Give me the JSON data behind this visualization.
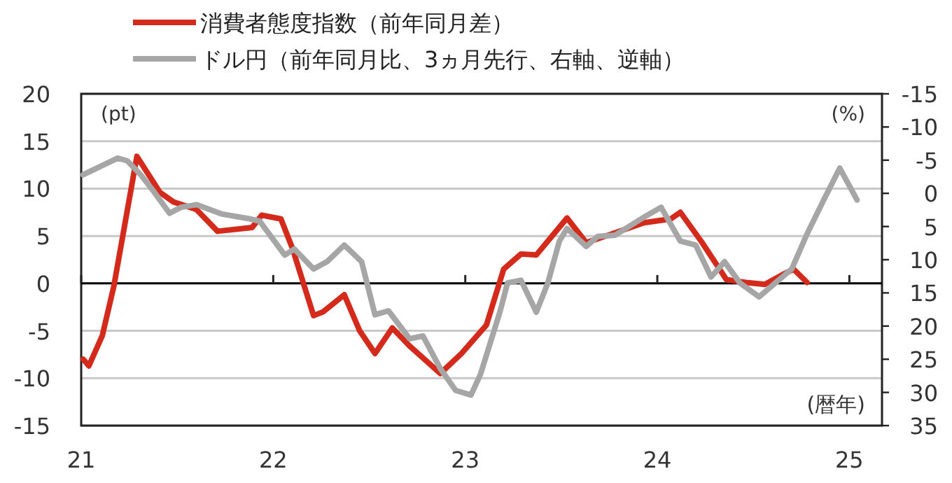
{
  "chart_data": {
    "type": "line",
    "xlim": [
      21,
      25.17
    ],
    "xticks": [
      21,
      22,
      23,
      24,
      25
    ],
    "ylim": [
      -15,
      20
    ],
    "yticks": [
      -15,
      -10,
      -5,
      0,
      5,
      10,
      15,
      20
    ],
    "y2lim": [
      35,
      -15
    ],
    "y2ticks": [
      35,
      30,
      25,
      20,
      15,
      10,
      5,
      0,
      -5,
      -10,
      -15
    ],
    "ylabel": "(pt)",
    "y2label": "(%)",
    "xlabel": "(暦年)",
    "grid": "y",
    "legend": "top",
    "ref_lines": [
      {
        "axis": "y",
        "value": 0,
        "color": "#000000"
      }
    ],
    "series": [
      {
        "name": "消費者態度指数（前年同月差）",
        "color": "#d42a1c",
        "x": [
          21.01,
          21.04,
          21.11,
          21.17,
          21.29,
          21.41,
          21.48,
          21.6,
          21.71,
          21.89,
          21.94,
          22.04,
          22.1,
          22.21,
          22.26,
          22.37,
          22.45,
          22.53,
          22.62,
          22.71,
          22.87,
          22.98,
          23.11,
          23.2,
          23.29,
          23.37,
          23.53,
          23.63,
          23.76,
          23.93,
          24.07,
          24.12,
          24.23,
          24.36,
          24.46,
          24.56,
          24.65,
          24.71,
          24.78
        ],
        "values": [
          -8.0,
          -8.7,
          -5.5,
          -0.3,
          13.4,
          9.6,
          8.6,
          7.8,
          5.5,
          5.9,
          7.2,
          6.8,
          3.7,
          -3.4,
          -3.0,
          -1.2,
          -5.0,
          -7.4,
          -4.7,
          -6.6,
          -9.5,
          -7.4,
          -4.4,
          1.5,
          3.1,
          3.0,
          6.9,
          4.3,
          5.2,
          6.4,
          6.8,
          7.5,
          4.4,
          0.4,
          0.1,
          -0.1,
          0.9,
          1.5,
          0.1
        ]
      },
      {
        "name": "ドル円（前年同月比、3ヵ月先行、右軸、逆軸）",
        "color": "#a6a6a6",
        "axis": "y2",
        "x": [
          21.01,
          21.19,
          21.24,
          21.31,
          21.38,
          21.46,
          21.52,
          21.6,
          21.73,
          21.87,
          21.93,
          22.06,
          22.11,
          22.21,
          22.28,
          22.37,
          22.46,
          22.53,
          22.6,
          22.71,
          22.78,
          22.87,
          22.95,
          23.03,
          23.08,
          23.18,
          23.22,
          23.29,
          23.37,
          23.43,
          23.49,
          23.53,
          23.63,
          23.69,
          23.78,
          23.93,
          24.02,
          24.12,
          24.2,
          24.28,
          24.35,
          24.43,
          24.53,
          24.7,
          24.78,
          24.87,
          24.95,
          25.04
        ],
        "values": [
          -2.8,
          -5.3,
          -4.9,
          -2.8,
          -0.2,
          3.0,
          2.1,
          1.7,
          3.1,
          3.8,
          4.2,
          9.3,
          8.4,
          11.4,
          10.3,
          7.8,
          10.3,
          18.3,
          17.7,
          21.9,
          21.5,
          26.4,
          29.7,
          30.4,
          27.2,
          17.9,
          13.5,
          13.1,
          17.9,
          13.5,
          7.2,
          5.3,
          8.0,
          6.5,
          6.3,
          3.6,
          2.1,
          7.2,
          7.8,
          12.6,
          10.3,
          13.5,
          15.6,
          11.4,
          6.1,
          0.8,
          -3.8,
          1.0
        ]
      }
    ]
  }
}
